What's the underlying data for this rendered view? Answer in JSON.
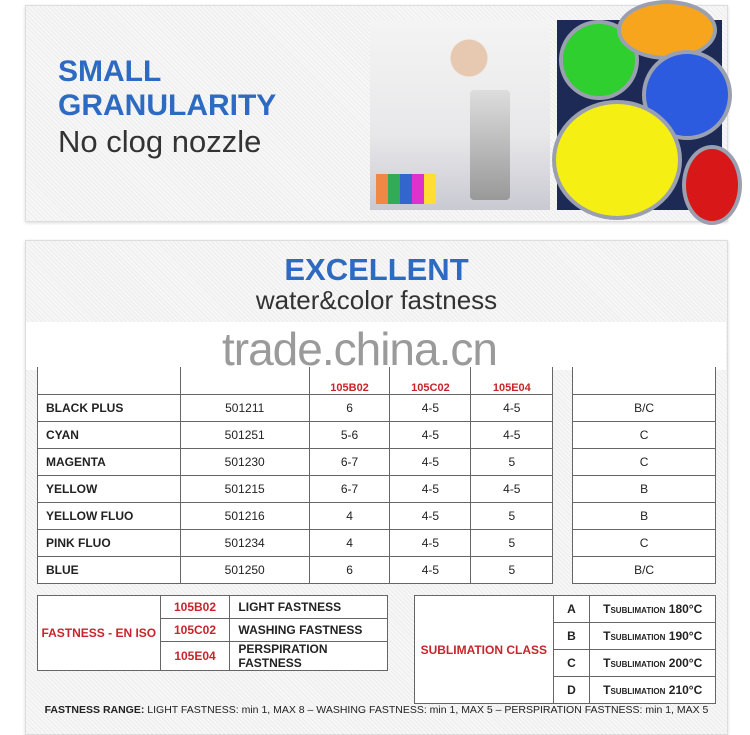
{
  "banner": {
    "title_line1": "SMALL",
    "title_line2": "GRANULARITY",
    "subtitle": "No clog nozzle"
  },
  "section": {
    "title": "EXCELLENT",
    "subtitle": "water&color fastness",
    "watermark": "trade.china.cn"
  },
  "table": {
    "headers": [
      "",
      "",
      "105B02",
      "105C02",
      "105E04",
      "",
      ""
    ],
    "rows": [
      {
        "name": "BLACK PLUS",
        "code": "501211",
        "b02": "6",
        "c02": "4-5",
        "e04": "4-5",
        "class": "B/C"
      },
      {
        "name": "CYAN",
        "code": "501251",
        "b02": "5-6",
        "c02": "4-5",
        "e04": "4-5",
        "class": "C"
      },
      {
        "name": "MAGENTA",
        "code": "501230",
        "b02": "6-7",
        "c02": "4-5",
        "e04": "5",
        "class": "C"
      },
      {
        "name": "YELLOW",
        "code": "501215",
        "b02": "6-7",
        "c02": "4-5",
        "e04": "4-5",
        "class": "B"
      },
      {
        "name": "YELLOW FLUO",
        "code": "501216",
        "b02": "4",
        "c02": "4-5",
        "e04": "5",
        "class": "B"
      },
      {
        "name": "PINK FLUO",
        "code": "501234",
        "b02": "4",
        "c02": "4-5",
        "e04": "5",
        "class": "C"
      },
      {
        "name": "BLUE",
        "code": "501250",
        "b02": "6",
        "c02": "4-5",
        "e04": "5",
        "class": "B/C"
      }
    ]
  },
  "fastness_legend": {
    "label": "FASTNESS - EN ISO",
    "items": [
      {
        "code": "105B02",
        "desc": "LIGHT FASTNESS"
      },
      {
        "code": "105C02",
        "desc": "WASHING FASTNESS"
      },
      {
        "code": "105E04",
        "desc": "PERSPIRATION FASTNESS"
      }
    ]
  },
  "sublimation_legend": {
    "label": "SUBLIMATION CLASS",
    "items": [
      {
        "class": "A",
        "t": "T",
        "sub": "SUBLIMATION",
        "temp": "180°C"
      },
      {
        "class": "B",
        "t": "T",
        "sub": "SUBLIMATION",
        "temp": "190°C"
      },
      {
        "class": "C",
        "t": "T",
        "sub": "SUBLIMATION",
        "temp": "200°C"
      },
      {
        "class": "D",
        "t": "T",
        "sub": "SUBLIMATION",
        "temp": "210°C"
      }
    ]
  },
  "footer": {
    "label": "FASTNESS RANGE:",
    "text": " LIGHT FASTNESS: min 1, MAX 8 – WASHING FASTNESS: min 1, MAX 5 – PERSPIRATION FASTNESS: min 1, MAX 5"
  },
  "colors": {
    "accent_blue": "#2d6bc2",
    "accent_red": "#c8242c"
  }
}
